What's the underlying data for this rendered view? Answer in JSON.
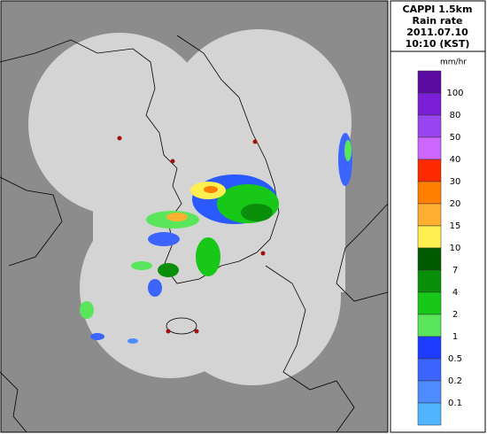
{
  "header": {
    "product": "CAPPI 1.5km",
    "quantity": "Rain rate",
    "date": "2011.07.10",
    "time": "10:10 (KST)"
  },
  "legend": {
    "unit": "mm/hr",
    "labels": [
      100,
      80,
      50,
      40,
      30,
      20,
      15,
      10,
      7,
      4,
      2,
      1,
      0.5,
      0.2,
      0.1
    ],
    "colors": [
      "#5a0aa0",
      "#7a1ed8",
      "#9a46f0",
      "#cc66ff",
      "#ff2a00",
      "#ff7f00",
      "#ffb030",
      "#ffef50",
      "#005a00",
      "#0a8f0a",
      "#18c818",
      "#5ae65a",
      "#1e3cff",
      "#3c64ff",
      "#4c8cff",
      "#50b4ff"
    ]
  }
}
